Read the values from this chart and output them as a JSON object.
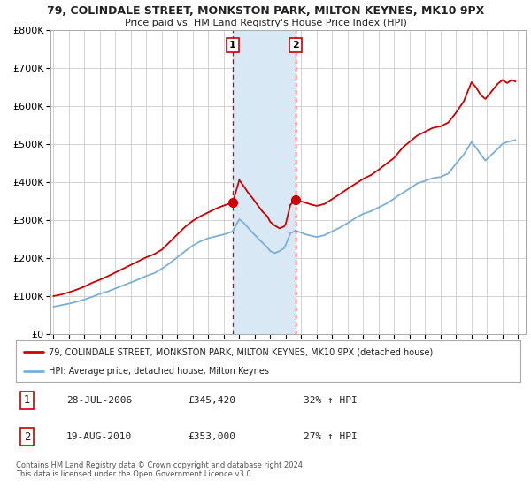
{
  "title1": "79, COLINDALE STREET, MONKSTON PARK, MILTON KEYNES, MK10 9PX",
  "title2": "Price paid vs. HM Land Registry's House Price Index (HPI)",
  "ylim": [
    0,
    800000
  ],
  "yticks": [
    0,
    100000,
    200000,
    300000,
    400000,
    500000,
    600000,
    700000,
    800000
  ],
  "ytick_labels": [
    "£0",
    "£100K",
    "£200K",
    "£300K",
    "£400K",
    "£500K",
    "£600K",
    "£700K",
    "£800K"
  ],
  "xlim_start": 1994.8,
  "xlim_end": 2025.5,
  "sale1_x": 2006.57,
  "sale1_y": 345420,
  "sale2_x": 2010.63,
  "sale2_y": 353000,
  "shade_x1": 2006.57,
  "shade_x2": 2010.63,
  "red_line_color": "#cc0000",
  "blue_line_color": "#7bafd4",
  "dot_color": "#cc0000",
  "shade_color": "#d8e8f5",
  "grid_color": "#cccccc",
  "bg_color": "#ffffff",
  "legend_line1": "79, COLINDALE STREET, MONKSTON PARK, MILTON KEYNES, MK10 9PX (detached house)",
  "legend_line2": "HPI: Average price, detached house, Milton Keynes",
  "table_row1_num": "1",
  "table_row1_date": "28-JUL-2006",
  "table_row1_price": "£345,420",
  "table_row1_hpi": "32% ↑ HPI",
  "table_row2_num": "2",
  "table_row2_date": "19-AUG-2010",
  "table_row2_price": "£353,000",
  "table_row2_hpi": "27% ↑ HPI",
  "footnote": "Contains HM Land Registry data © Crown copyright and database right 2024.\nThis data is licensed under the Open Government Licence v3.0.",
  "red_years": [
    1995,
    1995.5,
    1996,
    1996.5,
    1997,
    1997.5,
    1998,
    1998.5,
    1999,
    1999.5,
    2000,
    2000.5,
    2001,
    2001.5,
    2002,
    2002.5,
    2003,
    2003.5,
    2004,
    2004.5,
    2005,
    2005.5,
    2006,
    2006.3,
    2006.57,
    2007.0,
    2007.3,
    2007.6,
    2007.9,
    2008.2,
    2008.5,
    2008.8,
    2009.0,
    2009.3,
    2009.6,
    2009.9,
    2010.0,
    2010.3,
    2010.63,
    2010.9,
    2011.3,
    2011.7,
    2012.0,
    2012.5,
    2013.0,
    2013.5,
    2014.0,
    2014.5,
    2015.0,
    2015.5,
    2016.0,
    2016.5,
    2017.0,
    2017.3,
    2017.6,
    2017.9,
    2018.2,
    2018.5,
    2019.0,
    2019.5,
    2020.0,
    2020.5,
    2021.0,
    2021.5,
    2022.0,
    2022.3,
    2022.6,
    2022.9,
    2023.3,
    2023.7,
    2024.0,
    2024.3,
    2024.6,
    2024.83
  ],
  "red_vals": [
    100000,
    104000,
    110000,
    117000,
    125000,
    135000,
    143000,
    152000,
    162000,
    172000,
    182000,
    192000,
    202000,
    210000,
    222000,
    242000,
    262000,
    282000,
    298000,
    310000,
    320000,
    330000,
    338000,
    342000,
    345420,
    405000,
    388000,
    370000,
    355000,
    338000,
    322000,
    310000,
    295000,
    285000,
    278000,
    283000,
    290000,
    340000,
    353000,
    350000,
    345000,
    340000,
    337000,
    342000,
    355000,
    368000,
    382000,
    395000,
    408000,
    418000,
    432000,
    448000,
    463000,
    478000,
    492000,
    502000,
    512000,
    522000,
    532000,
    542000,
    546000,
    556000,
    582000,
    612000,
    662000,
    648000,
    628000,
    618000,
    638000,
    658000,
    668000,
    660000,
    668000,
    664000
  ],
  "blue_vals": [
    72000,
    76000,
    80000,
    85000,
    91000,
    98000,
    106000,
    112000,
    120000,
    128000,
    136000,
    144000,
    153000,
    160000,
    172000,
    186000,
    202000,
    218000,
    233000,
    244000,
    252000,
    257000,
    262000,
    266000,
    270000,
    302000,
    292000,
    278000,
    265000,
    252000,
    240000,
    228000,
    218000,
    213000,
    218000,
    226000,
    235000,
    265000,
    272000,
    268000,
    262000,
    258000,
    255000,
    260000,
    270000,
    280000,
    292000,
    305000,
    316000,
    323000,
    333000,
    343000,
    356000,
    365000,
    372000,
    380000,
    388000,
    396000,
    403000,
    410000,
    413000,
    422000,
    448000,
    472000,
    505000,
    490000,
    472000,
    456000,
    472000,
    487000,
    500000,
    505000,
    508000,
    510000
  ]
}
